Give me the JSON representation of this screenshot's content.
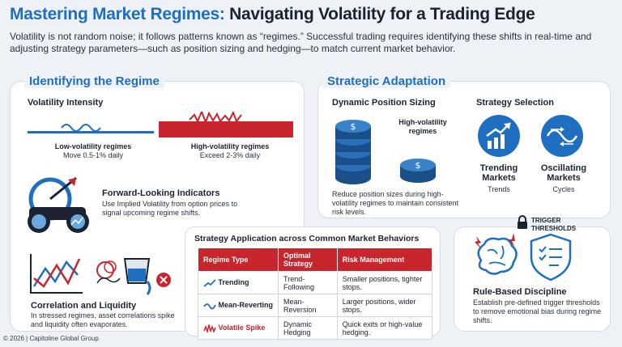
{
  "header": {
    "title_part1": "Mastering Market Regimes:",
    "title_part2": "Navigating Volatility for a Trading Edge",
    "intro": "Volatility is not random noise; it follows patterns known as “regimes.” Successful trading requires identifying these shifts in real-time and adjusting strategy parameters—such as position sizing and hedging—to match current market behavior."
  },
  "identify": {
    "section_title": "Identifying the Regime",
    "vol_title": "Volatility Intensity",
    "low_title": "Low-volatility regimes",
    "low_desc": "Move 0.5-1% daily",
    "high_title": "High-volatility regimes",
    "high_desc": "Exceed 2-3% daily",
    "fwd_title": "Forward-Looking Indicators",
    "fwd_desc": "Use Implied Volatility from option prices to signal upcoming regime shifts.",
    "corr_title": "Correlation and Liquidity",
    "corr_desc": "In stressed regimes, asset correlations spike and liquidity often evaporates."
  },
  "adapt": {
    "section_title": "Strategic Adaptation",
    "sizing_title": "Dynamic Position Sizing",
    "sizing_label": "High-volatility regimes",
    "sizing_desc": "Reduce position sizes during high-volatility regimes to maintain consistent risk levels.",
    "selection_title": "Strategy Selection",
    "trending_title": "Trending Markets",
    "trending_sub": "Trends",
    "osc_title": "Oscillating Markets",
    "osc_sub": "Cycles",
    "trigger_label": "TRIGGER THRESHOLDS",
    "rule_title": "Rule-Based Discipline",
    "rule_desc": "Establish pre-defined trigger thresholds to remove emotional bias during regime shifts."
  },
  "table": {
    "title": "Strategy Application across Common Market Behaviors",
    "headers": [
      "Regime Type",
      "Optimal Strategy",
      "Risk Management"
    ],
    "rows": [
      {
        "regime": "Trending",
        "strategy": "Trend-Following",
        "risk": "Smaller positions, tighter stops."
      },
      {
        "regime": "Mean-Reverting",
        "strategy": "Mean-Reversion",
        "risk": "Larger positions, wider stops."
      },
      {
        "regime": "Volatile Spike",
        "strategy": "Dynamic Hedging",
        "risk": "Quick exits or high-value hedging."
      }
    ]
  },
  "footer": "© 2026 | Capitoline Global Group",
  "colors": {
    "blue": "#1f6fc0",
    "red": "#c8252c",
    "dark": "#1b2330"
  }
}
